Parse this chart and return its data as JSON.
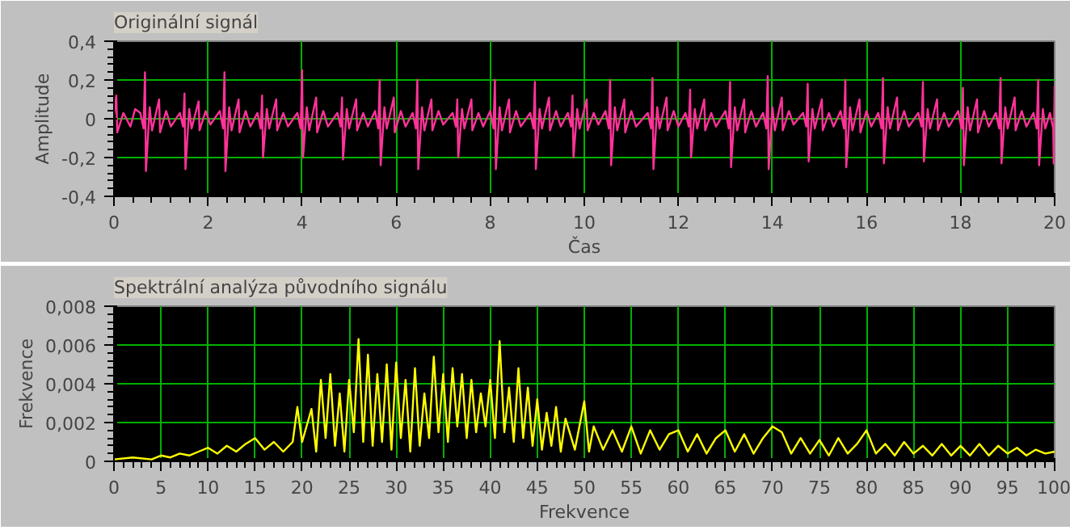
{
  "chart_data": [
    {
      "type": "line",
      "title": "Originální signál",
      "xlabel": "Čas",
      "ylabel": "Amplitude",
      "grid": true,
      "xlim": [
        0,
        20
      ],
      "ylim": [
        -0.4,
        0.4
      ],
      "xticks": [
        0,
        2,
        4,
        6,
        8,
        10,
        12,
        14,
        16,
        18,
        20
      ],
      "yticks": [
        {
          "value": -0.4,
          "label": "-0,4"
        },
        {
          "value": -0.2,
          "label": "-0,2"
        },
        0,
        {
          "value": 0.2,
          "label": "0,2"
        },
        {
          "value": 0.4,
          "label": "0,4"
        }
      ],
      "series": [
        {
          "color": "#ff3399",
          "x": [
            0,
            0.05,
            0.07,
            0.2,
            0.35,
            0.45,
            0.56,
            0.63,
            0.66,
            0.68,
            0.76,
            0.81,
            0.96,
            0.98,
            1.11,
            1.21,
            1.4,
            1.47,
            1.5,
            1.52,
            1.6,
            1.65,
            1.8,
            1.82,
            1.95,
            2.05,
            2.25,
            2.32,
            2.35,
            2.37,
            2.45,
            2.5,
            2.65,
            2.67,
            2.8,
            2.9,
            3.05,
            3.12,
            3.15,
            3.17,
            3.25,
            3.3,
            3.45,
            3.47,
            3.6,
            3.7,
            3.9,
            3.97,
            4.0,
            4.02,
            4.1,
            4.15,
            4.3,
            4.32,
            4.45,
            4.55,
            4.75,
            4.82,
            4.85,
            4.87,
            4.95,
            5.0,
            5.15,
            5.17,
            5.3,
            5.4,
            5.55,
            5.62,
            5.65,
            5.67,
            5.75,
            5.8,
            5.95,
            5.97,
            6.1,
            6.2,
            6.35,
            6.42,
            6.45,
            6.47,
            6.55,
            6.6,
            6.75,
            6.77,
            6.9,
            7.0,
            7.2,
            7.27,
            7.3,
            7.32,
            7.4,
            7.45,
            7.6,
            7.62,
            7.75,
            7.85,
            8.0,
            8.07,
            8.1,
            8.12,
            8.2,
            8.25,
            8.4,
            8.42,
            8.55,
            8.65,
            8.85,
            8.92,
            8.95,
            8.97,
            9.05,
            9.1,
            9.25,
            9.27,
            9.4,
            9.5,
            9.65,
            9.72,
            9.75,
            9.77,
            9.85,
            9.9,
            10.05,
            10.07,
            10.2,
            10.3,
            10.45,
            10.52,
            10.55,
            10.57,
            10.65,
            10.7,
            10.85,
            10.87,
            11.0,
            11.1,
            11.35,
            11.42,
            11.45,
            11.47,
            11.55,
            11.6,
            11.75,
            11.77,
            11.9,
            12.0,
            12.15,
            12.22,
            12.25,
            12.27,
            12.35,
            12.4,
            12.55,
            12.57,
            12.7,
            12.8,
            13.0,
            13.07,
            13.1,
            13.12,
            13.2,
            13.25,
            13.4,
            13.42,
            13.55,
            13.65,
            13.8,
            13.87,
            13.9,
            13.92,
            14.0,
            14.05,
            14.2,
            14.22,
            14.35,
            14.45,
            14.65,
            14.72,
            14.75,
            14.77,
            14.85,
            14.9,
            15.05,
            15.07,
            15.2,
            15.3,
            15.45,
            15.52,
            15.55,
            15.57,
            15.65,
            15.7,
            15.85,
            15.87,
            16.0,
            16.1,
            16.25,
            16.32,
            16.35,
            16.37,
            16.45,
            16.5,
            16.65,
            16.67,
            16.8,
            16.9,
            17.1,
            17.17,
            17.2,
            17.22,
            17.3,
            17.35,
            17.5,
            17.52,
            17.65,
            17.75,
            17.95,
            18.02,
            18.05,
            18.07,
            18.15,
            18.2,
            18.35,
            18.37,
            18.5,
            18.6,
            18.75,
            18.82,
            18.85,
            18.87,
            18.95,
            19.0,
            19.15,
            19.17,
            19.3,
            19.4,
            19.55,
            19.62,
            19.65,
            19.67,
            19.75,
            19.8,
            19.9,
            19.97,
            19.98,
            20
          ],
          "values": [
            0.02,
            0.12,
            -0.07,
            0.03,
            -0.04,
            0.05,
            0.03,
            -0.05,
            0.24,
            -0.27,
            0.06,
            -0.06,
            0.1,
            -0.07,
            0.04,
            -0.04,
            0.03,
            -0.04,
            0.13,
            -0.26,
            0.05,
            -0.05,
            0.09,
            -0.06,
            0.04,
            -0.03,
            0.04,
            -0.05,
            0.24,
            -0.27,
            0.06,
            -0.06,
            0.1,
            -0.07,
            0.04,
            -0.04,
            0.03,
            -0.05,
            0.12,
            -0.2,
            0.05,
            -0.05,
            0.1,
            -0.06,
            0.03,
            -0.04,
            0.03,
            -0.05,
            0.25,
            -0.2,
            0.06,
            -0.06,
            0.11,
            -0.07,
            0.04,
            -0.04,
            0.03,
            -0.04,
            0.11,
            -0.21,
            0.05,
            -0.05,
            0.1,
            -0.06,
            0.03,
            -0.04,
            0.04,
            -0.05,
            0.2,
            -0.24,
            0.06,
            -0.05,
            0.11,
            -0.07,
            0.04,
            -0.04,
            0.03,
            -0.05,
            0.2,
            -0.26,
            0.06,
            -0.06,
            0.1,
            -0.06,
            0.04,
            -0.03,
            0.03,
            -0.04,
            0.1,
            -0.2,
            0.05,
            -0.05,
            0.1,
            -0.06,
            0.03,
            -0.04,
            0.04,
            -0.05,
            0.2,
            -0.26,
            0.06,
            -0.06,
            0.1,
            -0.07,
            0.04,
            -0.04,
            0.03,
            -0.05,
            0.19,
            -0.26,
            0.05,
            -0.05,
            0.11,
            -0.06,
            0.04,
            -0.04,
            0.03,
            -0.04,
            0.12,
            -0.2,
            0.05,
            -0.05,
            0.1,
            -0.06,
            0.03,
            -0.03,
            0.04,
            -0.05,
            0.2,
            -0.24,
            0.06,
            -0.06,
            0.1,
            -0.07,
            0.04,
            -0.04,
            0.03,
            -0.05,
            0.21,
            -0.26,
            0.06,
            -0.05,
            0.11,
            -0.06,
            0.04,
            -0.04,
            0.03,
            -0.04,
            0.15,
            -0.2,
            0.05,
            -0.05,
            0.1,
            -0.06,
            0.03,
            -0.04,
            0.04,
            -0.05,
            0.19,
            -0.25,
            0.06,
            -0.06,
            0.1,
            -0.07,
            0.04,
            -0.04,
            0.03,
            -0.05,
            0.22,
            -0.26,
            0.06,
            -0.06,
            0.11,
            -0.06,
            0.04,
            -0.03,
            0.03,
            -0.04,
            0.18,
            -0.22,
            0.05,
            -0.05,
            0.1,
            -0.06,
            0.03,
            -0.04,
            0.04,
            -0.05,
            0.2,
            -0.25,
            0.06,
            -0.06,
            0.1,
            -0.07,
            0.04,
            -0.04,
            0.03,
            -0.05,
            0.21,
            -0.23,
            0.06,
            -0.05,
            0.11,
            -0.06,
            0.04,
            -0.04,
            0.03,
            -0.04,
            0.19,
            -0.22,
            0.05,
            -0.05,
            0.1,
            -0.06,
            0.03,
            -0.04,
            0.04,
            -0.05,
            0.16,
            -0.24,
            0.06,
            -0.06,
            0.1,
            -0.07,
            0.04,
            -0.04,
            0.03,
            -0.05,
            0.21,
            -0.23,
            0.06,
            -0.05,
            0.11,
            -0.06,
            0.04,
            -0.04,
            0.03,
            -0.05,
            0.2,
            -0.24,
            0.05,
            -0.05,
            0.03,
            -0.05,
            -0.23,
            0.17
          ]
        }
      ]
    },
    {
      "type": "line",
      "title": "Spektrální analýza původního signálu",
      "xlabel": "Frekvence",
      "ylabel": "Frekvence",
      "grid": true,
      "xlim": [
        0,
        100
      ],
      "ylim": [
        0,
        0.008
      ],
      "xticks": [
        0,
        5,
        10,
        15,
        20,
        25,
        30,
        35,
        40,
        45,
        50,
        55,
        60,
        65,
        70,
        75,
        80,
        85,
        90,
        95,
        100
      ],
      "yticks": [
        0,
        {
          "value": 0.002,
          "label": "0,002"
        },
        {
          "value": 0.004,
          "label": "0,004"
        },
        {
          "value": 0.006,
          "label": "0,006"
        },
        {
          "value": 0.008,
          "label": "0,008"
        }
      ],
      "series": [
        {
          "color": "#ffff00",
          "x": [
            0,
            2,
            4,
            5,
            6,
            7,
            8,
            9,
            10,
            11,
            12,
            13,
            14,
            15,
            16,
            17,
            18,
            19,
            19.5,
            20,
            21,
            21.5,
            22,
            22.5,
            23,
            23.5,
            24,
            24.5,
            25,
            25.5,
            26,
            26.5,
            27,
            27.5,
            28,
            28.5,
            29,
            29.5,
            30,
            30.5,
            31,
            31.5,
            32,
            32.5,
            33,
            33.5,
            34,
            34.5,
            35,
            35.5,
            36,
            36.5,
            37,
            37.5,
            38,
            38.5,
            39,
            39.5,
            40,
            40.5,
            41,
            41.5,
            42,
            42.5,
            43,
            43.5,
            44,
            44.5,
            45,
            45.5,
            46,
            46.5,
            47,
            47.5,
            48,
            49,
            50,
            50.5,
            51,
            52,
            53,
            54,
            55,
            56,
            57,
            58,
            59,
            60,
            61,
            62,
            63,
            64,
            65,
            66,
            67,
            68,
            69,
            70,
            71,
            72,
            73,
            74,
            75,
            76,
            77,
            78,
            79,
            80,
            81,
            82,
            83,
            84,
            85,
            86,
            87,
            88,
            89,
            90,
            91,
            92,
            93,
            94,
            95,
            96,
            97,
            98,
            99,
            100
          ],
          "values": [
            0.0001,
            0.0002,
            0.0001,
            0.0003,
            0.0002,
            0.0004,
            0.0003,
            0.0005,
            0.0007,
            0.0004,
            0.0008,
            0.0005,
            0.0009,
            0.0012,
            0.0006,
            0.001,
            0.0005,
            0.001,
            0.0028,
            0.001,
            0.0027,
            0.0005,
            0.0042,
            0.0012,
            0.0045,
            0.0008,
            0.0035,
            0.0005,
            0.0042,
            0.0015,
            0.0063,
            0.001,
            0.0055,
            0.0008,
            0.0045,
            0.001,
            0.005,
            0.0006,
            0.0051,
            0.0012,
            0.0042,
            0.0005,
            0.0048,
            0.0008,
            0.0035,
            0.0012,
            0.0054,
            0.0015,
            0.0045,
            0.001,
            0.0048,
            0.0018,
            0.0045,
            0.0012,
            0.0042,
            0.0015,
            0.0035,
            0.0018,
            0.0042,
            0.0012,
            0.0062,
            0.0015,
            0.0038,
            0.001,
            0.0048,
            0.0012,
            0.0038,
            0.0008,
            0.0032,
            0.0006,
            0.0025,
            0.0008,
            0.0028,
            0.0005,
            0.0022,
            0.0006,
            0.0031,
            0.0005,
            0.0018,
            0.0006,
            0.0016,
            0.0005,
            0.0018,
            0.0004,
            0.0016,
            0.0006,
            0.0014,
            0.0016,
            0.0005,
            0.0014,
            0.0004,
            0.0012,
            0.0016,
            0.0005,
            0.0014,
            0.0004,
            0.0012,
            0.0018,
            0.0015,
            0.0004,
            0.0012,
            0.0004,
            0.0011,
            0.0003,
            0.0012,
            0.0004,
            0.0009,
            0.0016,
            0.0004,
            0.0009,
            0.0003,
            0.001,
            0.0004,
            0.0008,
            0.0003,
            0.0009,
            0.0003,
            0.0008,
            0.0003,
            0.0009,
            0.0003,
            0.0008,
            0.0004,
            0.0007,
            0.0003,
            0.0006,
            0.0004,
            0.0005
          ]
        }
      ]
    }
  ]
}
